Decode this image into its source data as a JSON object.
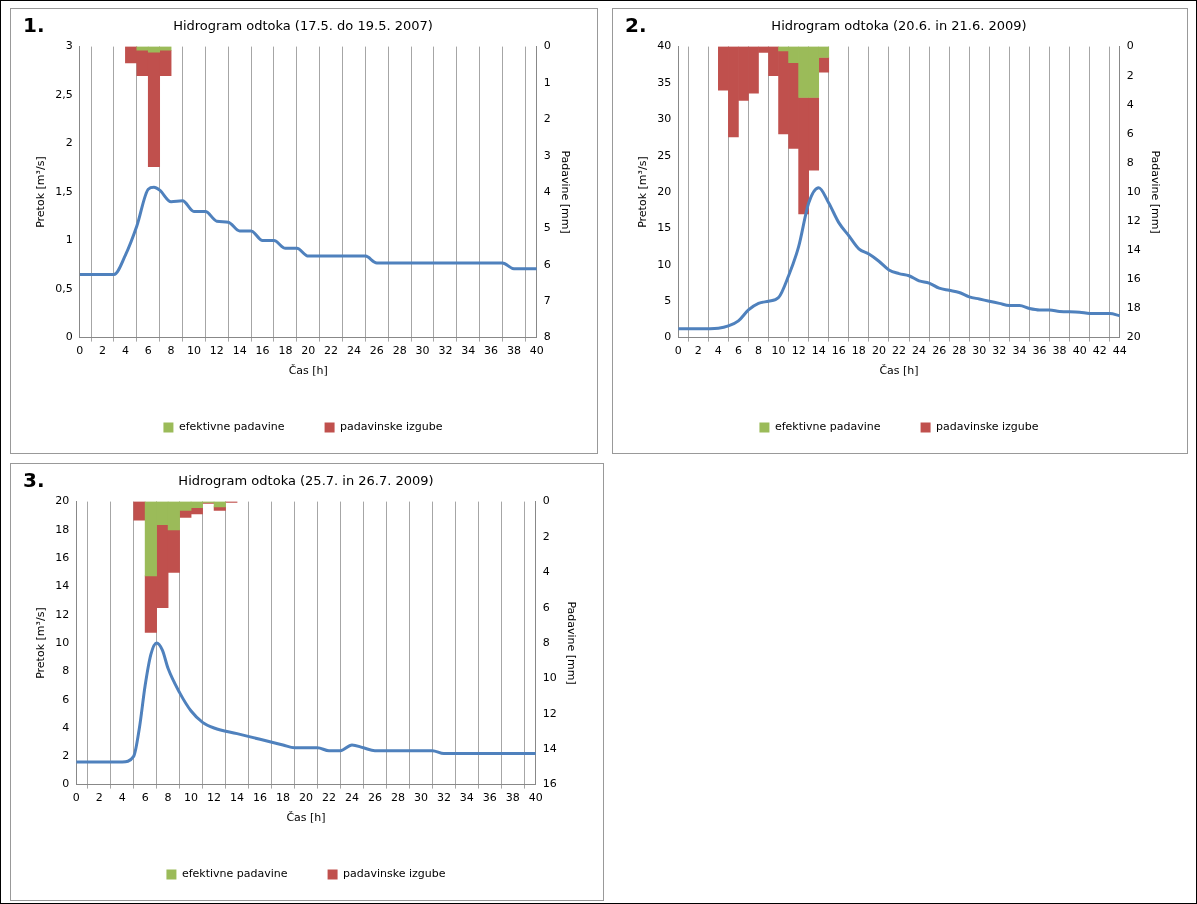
{
  "chart_data": [
    {
      "type": "bar",
      "title": "Hidrogram odtoka (17.5. do 19.5. 2007)",
      "annotations": [
        "1."
      ],
      "xlabel": "Čas [h]",
      "ylabel": "Pretok [m³/s]",
      "y2label": "Padavine [mm]",
      "xlim": [
        0,
        40
      ],
      "xticks": [
        0,
        2,
        4,
        6,
        8,
        10,
        12,
        14,
        16,
        18,
        20,
        22,
        24,
        26,
        28,
        30,
        32,
        34,
        36,
        38,
        40
      ],
      "ylim": [
        0,
        3
      ],
      "yticks": [
        0,
        {
          "value": 0.5,
          "label": "0,5"
        },
        1,
        {
          "value": 1.5,
          "label": "1,5"
        },
        2,
        {
          "value": 2.5,
          "label": "2,5"
        },
        3
      ],
      "y2lim": [
        8,
        0
      ],
      "y2ticks": [
        0,
        1,
        2,
        3,
        4,
        5,
        6,
        7,
        8
      ],
      "grid": "x",
      "legend": "bottom",
      "stacked": true,
      "marker": "none",
      "series": [
        {
          "type": "line",
          "color": "#4f81bd",
          "x": [
            0,
            3,
            4,
            5,
            6,
            6.5,
            7,
            8,
            9,
            10,
            11,
            12,
            13,
            14,
            15,
            16,
            17,
            18,
            19,
            20,
            21,
            25,
            26,
            37,
            38,
            40
          ],
          "values": [
            0.65,
            0.65,
            0.85,
            1.15,
            1.53,
            1.55,
            1.52,
            1.4,
            1.41,
            1.3,
            1.3,
            1.2,
            1.19,
            1.1,
            1.1,
            1.0,
            1.0,
            0.92,
            0.92,
            0.84,
            0.84,
            0.84,
            0.77,
            0.77,
            0.71,
            0.71
          ]
        },
        {
          "name": "efektivne padavine",
          "color": "#9bbb59",
          "axis": "y2",
          "x": [
            4.5,
            5.5,
            6.5,
            7.5
          ],
          "values": [
            0,
            0.1,
            0.15,
            0.1
          ]
        },
        {
          "name": "padavinske izgube",
          "color": "#c0504d",
          "axis": "y2",
          "x": [
            4.5,
            5.5,
            6.5,
            7.5
          ],
          "values": [
            0.45,
            0.7,
            3.15,
            0.7
          ]
        }
      ]
    },
    {
      "type": "bar",
      "title": "Hidrogram odtoka (20.6. in 21.6. 2009)",
      "annotations": [
        "2."
      ],
      "xlabel": "Čas [h]",
      "ylabel": "Pretok [m³/s]",
      "y2label": "Padavine [mm]",
      "xlim": [
        0,
        44
      ],
      "xticks": [
        0,
        2,
        4,
        6,
        8,
        10,
        12,
        14,
        16,
        18,
        20,
        22,
        24,
        26,
        28,
        30,
        32,
        34,
        36,
        38,
        40,
        42,
        44
      ],
      "ylim": [
        0,
        40
      ],
      "yticks": [
        0,
        5,
        10,
        15,
        20,
        25,
        30,
        35,
        40
      ],
      "y2lim": [
        20,
        0
      ],
      "y2ticks": [
        0,
        2,
        4,
        6,
        8,
        10,
        12,
        14,
        16,
        18,
        20
      ],
      "grid": "x",
      "legend": "bottom",
      "stacked": true,
      "marker": "none",
      "series": [
        {
          "type": "line",
          "color": "#4f81bd",
          "x": [
            0,
            2,
            4,
            5,
            6,
            7,
            8,
            9,
            10,
            11,
            12,
            13,
            14,
            15,
            16,
            17,
            18,
            19,
            20,
            21,
            22,
            23,
            24,
            25,
            26,
            27,
            28,
            29,
            30,
            31,
            32,
            33,
            34,
            35,
            36,
            37,
            38,
            40,
            41,
            43,
            44
          ],
          "values": [
            1.2,
            1.2,
            1.3,
            1.6,
            2.3,
            3.8,
            4.7,
            5.0,
            5.5,
            8.5,
            12.5,
            18.5,
            20.6,
            18.5,
            15.8,
            14,
            12.2,
            11.5,
            10.5,
            9.3,
            8.8,
            8.5,
            7.8,
            7.5,
            6.8,
            6.5,
            6.2,
            5.6,
            5.3,
            5.0,
            4.7,
            4.4,
            4.4,
            4.0,
            3.8,
            3.8,
            3.6,
            3.5,
            3.3,
            3.3,
            3.0
          ]
        },
        {
          "name": "efektivne padavine",
          "color": "#9bbb59",
          "axis": "y2",
          "x": [
            4.5,
            5.5,
            6.5,
            7.5,
            8.5,
            9.5,
            10.5,
            11.5,
            12.5,
            13.5,
            14.5
          ],
          "values": [
            0,
            0,
            0,
            0,
            0,
            0,
            0.3,
            1.1,
            3.5,
            3.5,
            0.75
          ]
        },
        {
          "name": "padavinske izgube",
          "color": "#c0504d",
          "axis": "y2",
          "x": [
            4.5,
            5.5,
            6.5,
            7.5,
            8.5,
            9.5,
            10.5,
            11.5,
            12.5,
            13.5,
            14.5
          ],
          "values": [
            3.0,
            6.2,
            3.7,
            3.2,
            0.4,
            2.0,
            5.7,
            5.9,
            8.0,
            5.0,
            1.0
          ]
        }
      ]
    },
    {
      "type": "bar",
      "title": "Hidrogram odtoka (25.7. in 26.7. 2009)",
      "annotations": [
        "3."
      ],
      "xlabel": "Čas [h]",
      "ylabel": "Pretok [m³/s]",
      "y2label": "Padavine [mm]",
      "xlim": [
        0,
        40
      ],
      "xticks": [
        0,
        2,
        4,
        6,
        8,
        10,
        12,
        14,
        16,
        18,
        20,
        22,
        24,
        26,
        28,
        30,
        32,
        34,
        36,
        38,
        40
      ],
      "ylim": [
        0,
        20
      ],
      "yticks": [
        0,
        2,
        4,
        6,
        8,
        10,
        12,
        14,
        16,
        18,
        20
      ],
      "y2lim": [
        16,
        0
      ],
      "y2ticks": [
        0,
        2,
        4,
        6,
        8,
        10,
        12,
        14,
        16
      ],
      "grid": "x",
      "legend": "bottom",
      "stacked": true,
      "marker": "none",
      "series": [
        {
          "type": "line",
          "color": "#4f81bd",
          "x": [
            0,
            4,
            5,
            5.5,
            6,
            6.5,
            7,
            7.5,
            8,
            9,
            10,
            11,
            12,
            14,
            16,
            18,
            19,
            21,
            22,
            23,
            24,
            25,
            26,
            30,
            31,
            32,
            40
          ],
          "values": [
            1.6,
            1.6,
            2.0,
            4,
            7,
            9.2,
            10,
            9.5,
            8.2,
            6.5,
            5.2,
            4.4,
            4.0,
            3.6,
            3.2,
            2.8,
            2.6,
            2.6,
            2.4,
            2.4,
            2.8,
            2.6,
            2.4,
            2.4,
            2.4,
            2.2,
            2.2
          ]
        },
        {
          "name": "efektivne padavine",
          "color": "#9bbb59",
          "axis": "y2",
          "x": [
            5.5,
            6.5,
            7.5,
            8.5,
            9.5,
            10.5,
            11.5,
            12.5,
            13.5
          ],
          "values": [
            0,
            4.2,
            1.3,
            1.6,
            0.5,
            0.35,
            0.05,
            0.3,
            0
          ]
        },
        {
          "name": "padavinske izgube",
          "color": "#c0504d",
          "axis": "y2",
          "x": [
            5.5,
            6.5,
            7.5,
            8.5,
            9.5,
            10.5,
            11.5,
            12.5,
            13.5
          ],
          "values": [
            1.05,
            3.2,
            4.7,
            2.4,
            0.4,
            0.35,
            0.05,
            0.2,
            0.05
          ]
        }
      ]
    }
  ]
}
